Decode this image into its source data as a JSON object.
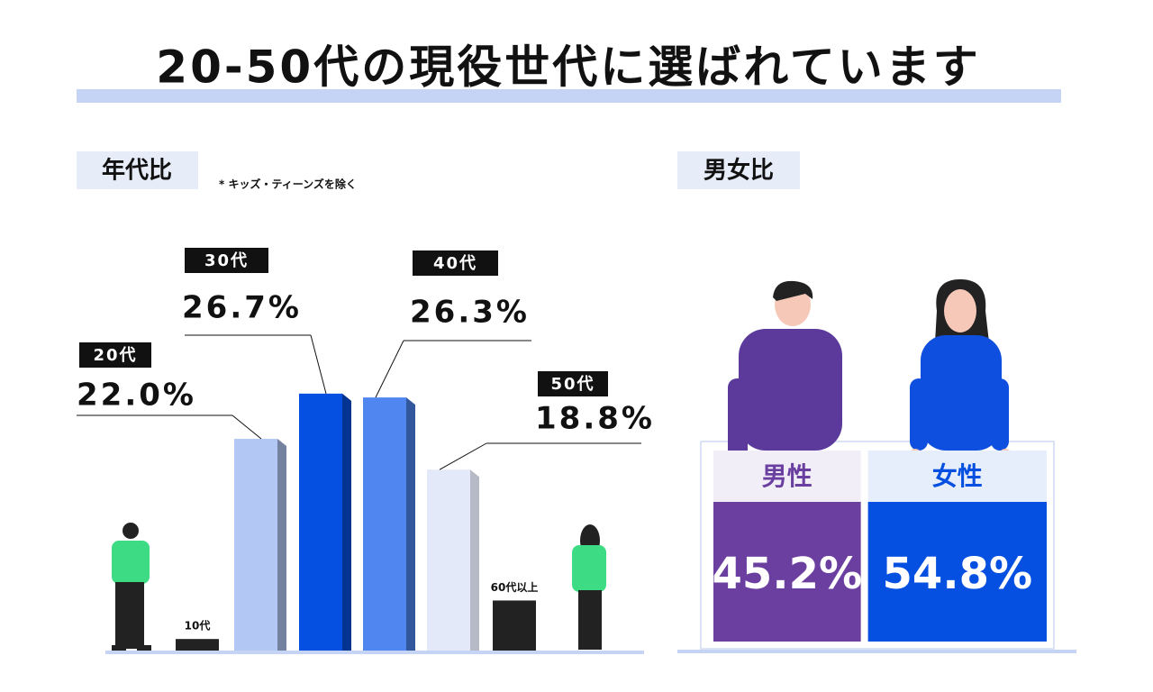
{
  "title": "20-50代の現役世代に選ばれています",
  "chart_data": [
    {
      "type": "bar",
      "title": "年代比",
      "note": "* キッズ・ティーンズを除く",
      "categories": [
        "10代",
        "20代",
        "30代",
        "40代",
        "50代",
        "60代以上"
      ],
      "values": [
        1.2,
        22.0,
        26.7,
        26.3,
        18.8,
        5.2
      ],
      "value_labels": [
        null,
        "22.0%",
        "26.7%",
        "26.3%",
        "18.8%",
        null
      ],
      "colors": [
        "#222222",
        "#b3c7f5",
        "#0550e0",
        "#4f86f0",
        "#e3e9f8",
        "#222222"
      ]
    },
    {
      "type": "stat",
      "title": "男女比",
      "categories": [
        "男性",
        "女性"
      ],
      "values": [
        45.2,
        54.8
      ],
      "value_labels": [
        "45.2%",
        "54.8%"
      ],
      "colors": [
        "#6a3fa0",
        "#0550e0"
      ]
    }
  ]
}
